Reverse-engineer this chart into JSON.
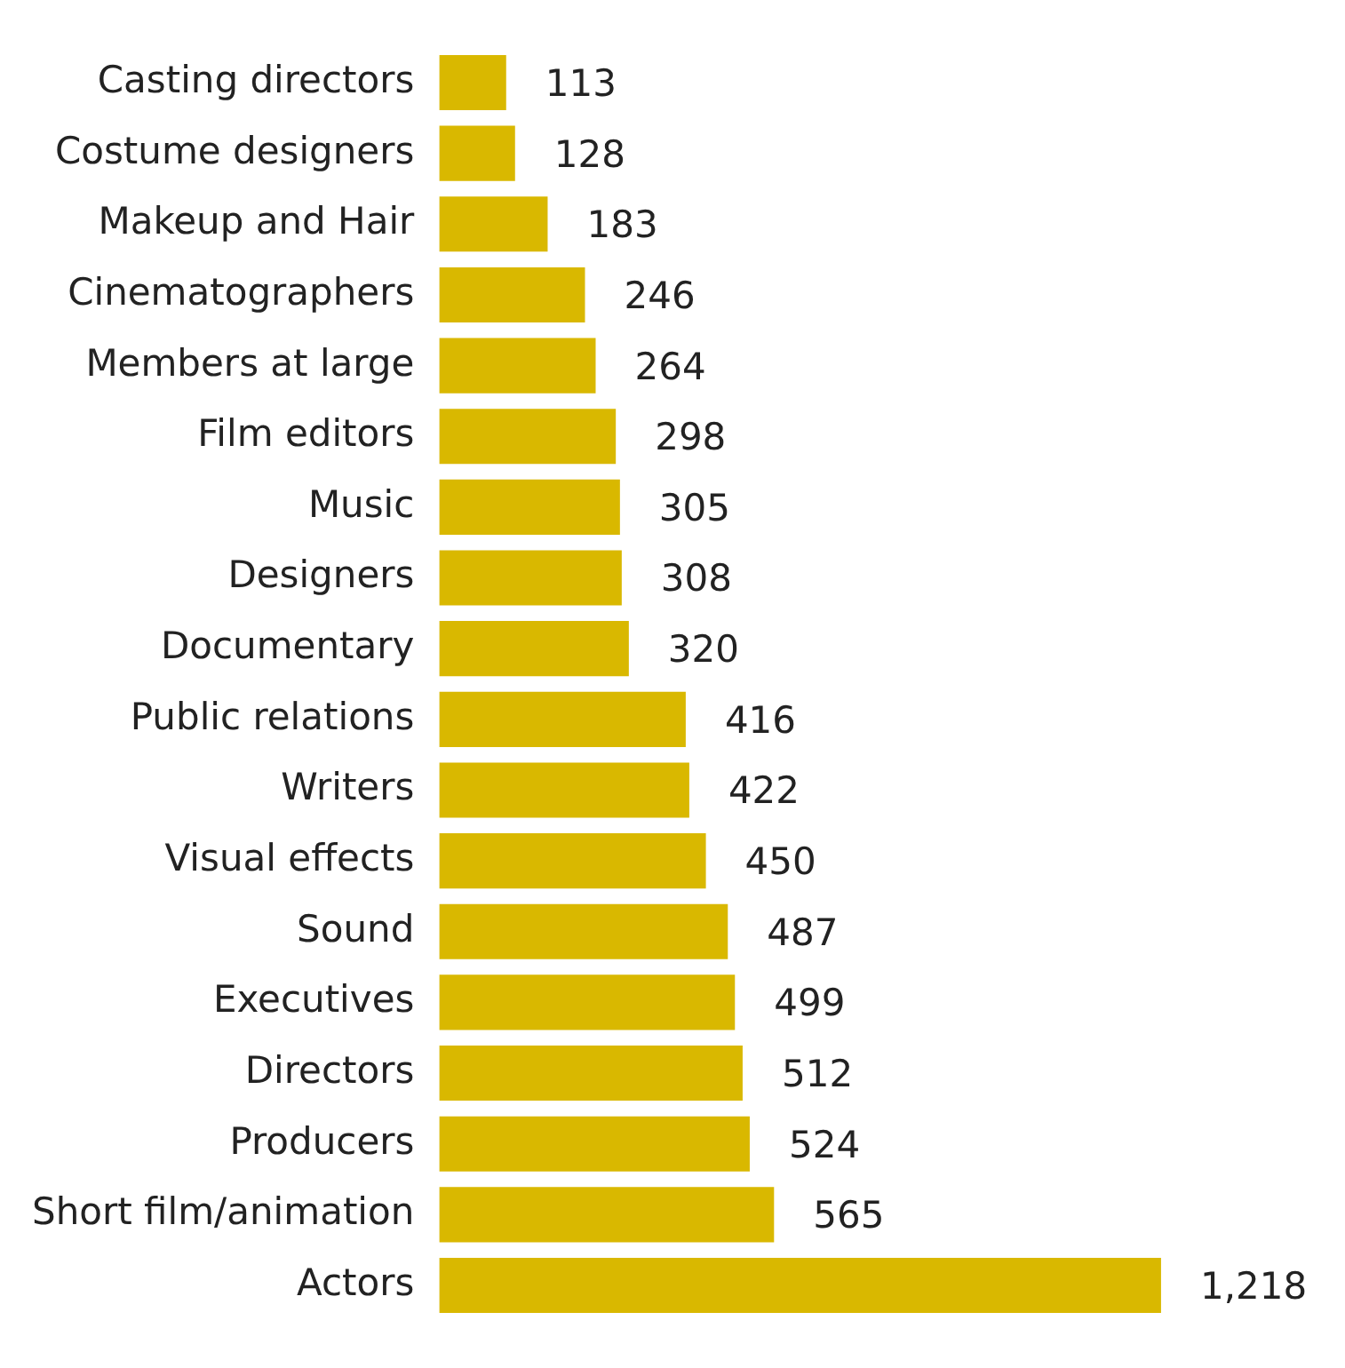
{
  "chart_data": {
    "type": "bar",
    "orientation": "horizontal",
    "categories": [
      "Casting directors",
      "Costume designers",
      "Makeup and Hair",
      "Cinematographers",
      "Members at large",
      "Film editors",
      "Music",
      "Designers",
      "Documentary",
      "Public relations",
      "Writers",
      "Visual effects",
      "Sound",
      "Executives",
      "Directors",
      "Producers",
      "Short film/animation",
      "Actors"
    ],
    "values": [
      113,
      128,
      183,
      246,
      264,
      298,
      305,
      308,
      320,
      416,
      422,
      450,
      487,
      499,
      512,
      524,
      565,
      1218
    ],
    "value_labels": [
      "113",
      "128",
      "183",
      "246",
      "264",
      "298",
      "305",
      "308",
      "320",
      "416",
      "422",
      "450",
      "487",
      "499",
      "512",
      "524",
      "565",
      "1,218"
    ],
    "color": "#d9b800"
  }
}
